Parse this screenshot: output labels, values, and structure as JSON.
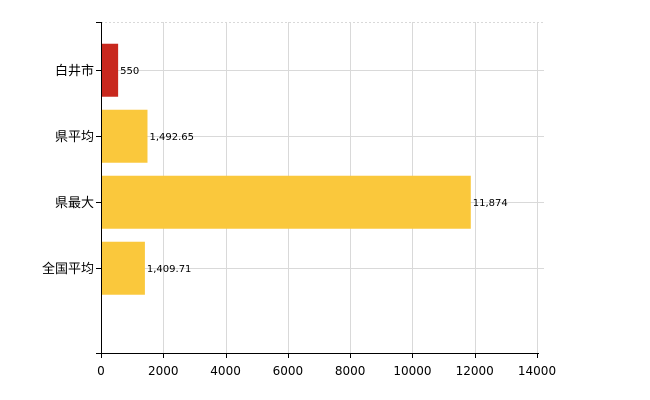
{
  "chart_data": {
    "type": "bar",
    "orientation": "horizontal",
    "categories": [
      "白井市",
      "県平均",
      "県最大",
      "全国平均"
    ],
    "values": [
      550,
      1492.65,
      11874,
      1409.71
    ],
    "value_labels": [
      "550",
      "1,492.65",
      "11,874",
      "1,409.71"
    ],
    "bar_colors": [
      "#c8281e",
      "#fac83c",
      "#fac83c",
      "#fac83c"
    ],
    "xlim": [
      0,
      14000
    ],
    "xticks": [
      0,
      2000,
      4000,
      6000,
      8000,
      10000,
      12000,
      14000
    ],
    "xtick_labels": [
      "0",
      "2000",
      "4000",
      "6000",
      "8000",
      "10000",
      "12000",
      "14000"
    ],
    "grid": true,
    "legend": "none"
  }
}
